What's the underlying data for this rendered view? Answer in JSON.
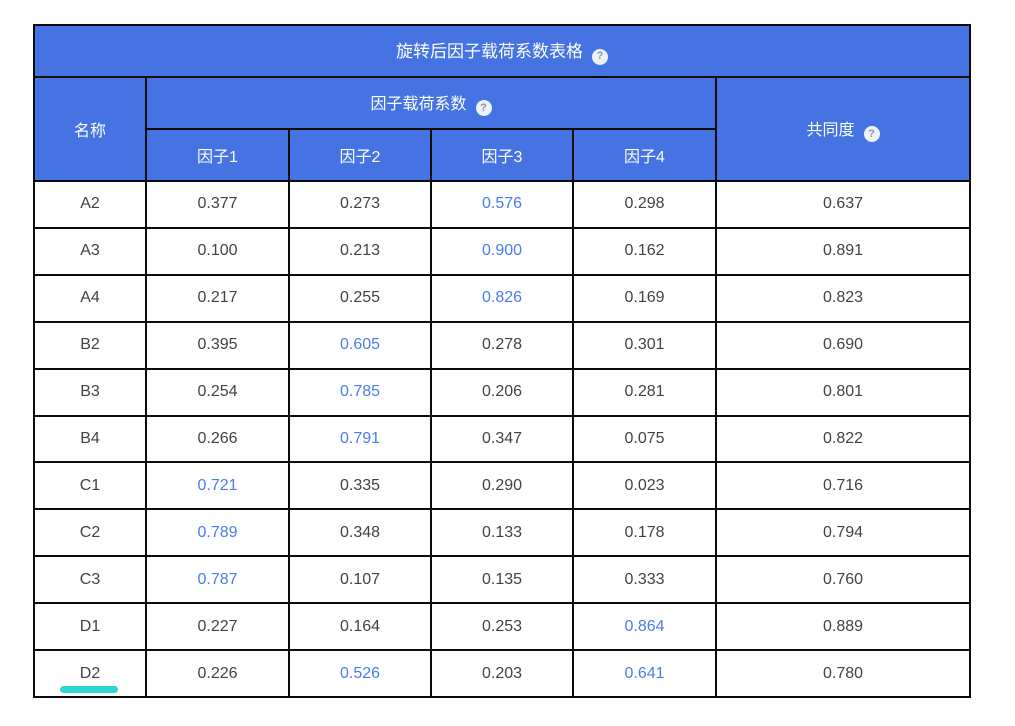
{
  "colors": {
    "page_bg": "#ffffff",
    "header_bg": "#4573e2",
    "header_text": "#ffffff",
    "border": "#0c0c0c",
    "cell_text": "#3f4347",
    "highlight_text": "#4a7cee",
    "help_icon_bg": "#eef1f7",
    "help_icon_text": "#8b96ab",
    "marker": "#2bd6ce"
  },
  "table": {
    "title": "旋转后因子载荷系数表格",
    "help_icon": "?",
    "columns": {
      "name": "名称",
      "factor_group": "因子载荷系数",
      "factors": [
        "因子1",
        "因子2",
        "因子3",
        "因子4"
      ],
      "communality": "共同度"
    },
    "rows": [
      {
        "name": "A2",
        "factors": [
          "0.377",
          "0.273",
          "0.576",
          "0.298"
        ],
        "highlight": [
          2
        ],
        "communality": "0.637"
      },
      {
        "name": "A3",
        "factors": [
          "0.100",
          "0.213",
          "0.900",
          "0.162"
        ],
        "highlight": [
          2
        ],
        "communality": "0.891"
      },
      {
        "name": "A4",
        "factors": [
          "0.217",
          "0.255",
          "0.826",
          "0.169"
        ],
        "highlight": [
          2
        ],
        "communality": "0.823"
      },
      {
        "name": "B2",
        "factors": [
          "0.395",
          "0.605",
          "0.278",
          "0.301"
        ],
        "highlight": [
          1
        ],
        "communality": "0.690"
      },
      {
        "name": "B3",
        "factors": [
          "0.254",
          "0.785",
          "0.206",
          "0.281"
        ],
        "highlight": [
          1
        ],
        "communality": "0.801"
      },
      {
        "name": "B4",
        "factors": [
          "0.266",
          "0.791",
          "0.347",
          "0.075"
        ],
        "highlight": [
          1
        ],
        "communality": "0.822"
      },
      {
        "name": "C1",
        "factors": [
          "0.721",
          "0.335",
          "0.290",
          "0.023"
        ],
        "highlight": [
          0
        ],
        "communality": "0.716"
      },
      {
        "name": "C2",
        "factors": [
          "0.789",
          "0.348",
          "0.133",
          "0.178"
        ],
        "highlight": [
          0
        ],
        "communality": "0.794"
      },
      {
        "name": "C3",
        "factors": [
          "0.787",
          "0.107",
          "0.135",
          "0.333"
        ],
        "highlight": [
          0
        ],
        "communality": "0.760"
      },
      {
        "name": "D1",
        "factors": [
          "0.227",
          "0.164",
          "0.253",
          "0.864"
        ],
        "highlight": [
          3
        ],
        "communality": "0.889"
      },
      {
        "name": "D2",
        "factors": [
          "0.226",
          "0.526",
          "0.203",
          "0.641"
        ],
        "highlight": [
          1,
          3
        ],
        "communality": "0.780"
      }
    ],
    "annotation": {
      "type": "underline-marker",
      "target_row": "D2",
      "color": "#2bd6ce"
    }
  }
}
